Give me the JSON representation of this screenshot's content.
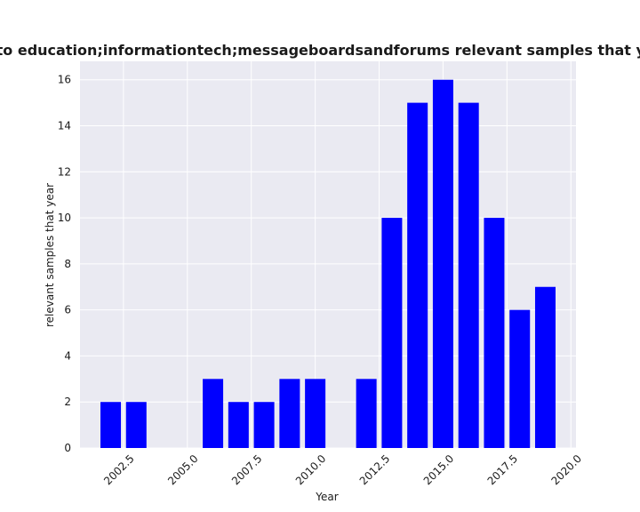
{
  "chart_data": {
    "type": "bar",
    "title": "related to education;informationtech;messageboardsandforums relevant samples that year in p",
    "xlabel": "Year",
    "ylabel": "relevant samples that year",
    "x": [
      2002,
      2003,
      2006,
      2007,
      2008,
      2009,
      2010,
      2012,
      2013,
      2014,
      2015,
      2016,
      2017,
      2018,
      2019
    ],
    "values": [
      2,
      2,
      3,
      2,
      2,
      3,
      3,
      3,
      10,
      15,
      16,
      15,
      10,
      6,
      7
    ],
    "xlim": [
      2000.8,
      2020.2
    ],
    "ylim": [
      0,
      16.8
    ],
    "xticks": [
      2002.5,
      2005.0,
      2007.5,
      2010.0,
      2012.5,
      2015.0,
      2017.5,
      2020.0
    ],
    "xtick_labels": [
      "2002.5",
      "2005.0",
      "2007.5",
      "2010.0",
      "2012.5",
      "2015.0",
      "2017.5",
      "2020.0"
    ],
    "yticks": [
      0,
      2,
      4,
      6,
      8,
      10,
      12,
      14,
      16
    ],
    "ytick_labels": [
      "0",
      "2",
      "4",
      "6",
      "8",
      "10",
      "12",
      "14",
      "16"
    ],
    "grid": true,
    "colors": {
      "bar": "#0000ff",
      "plot_background": "#eaeaf2",
      "grid": "#ffffff"
    }
  }
}
